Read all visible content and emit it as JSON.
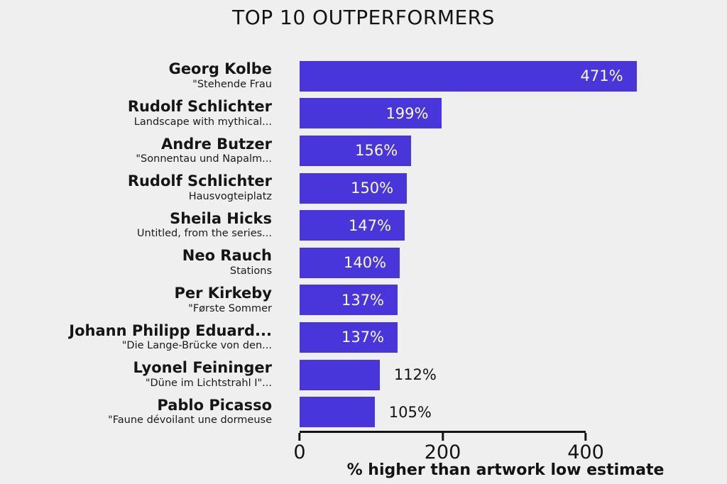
{
  "colors": {
    "background": "#efefef",
    "bar": "#4936db",
    "text": "#131313",
    "value_label_inside": "#faf9fc"
  },
  "chart_data": {
    "type": "bar",
    "orientation": "horizontal",
    "title": "TOP 10 OUTPERFORMERS",
    "xlabel": "% higher than artwork low estimate",
    "xlim": [
      0,
      400
    ],
    "xticks": [
      {
        "value": 0,
        "label": "0"
      },
      {
        "value": 200,
        "label": "200"
      },
      {
        "value": 400,
        "label": "400"
      }
    ],
    "grid": false,
    "legend": false,
    "items": [
      {
        "artist": "Georg Kolbe",
        "work": "\"Stehende Frau",
        "value": 471,
        "label": "471%"
      },
      {
        "artist": "Rudolf Schlichter",
        "work": "Landscape with mythical...",
        "value": 199,
        "label": "199%"
      },
      {
        "artist": "Andre Butzer",
        "work": "\"Sonnentau und Napalm...",
        "value": 156,
        "label": "156%"
      },
      {
        "artist": "Rudolf Schlichter",
        "work": "Hausvogteiplatz",
        "value": 150,
        "label": "150%"
      },
      {
        "artist": "Sheila Hicks",
        "work": "Untitled, from the series...",
        "value": 147,
        "label": "147%"
      },
      {
        "artist": "Neo Rauch",
        "work": "Stations",
        "value": 140,
        "label": "140%"
      },
      {
        "artist": "Per Kirkeby",
        "work": "\"Første Sommer",
        "value": 137,
        "label": "137%"
      },
      {
        "artist": "Johann Philipp Eduard...",
        "work": "\"Die Lange-Brücke von den...",
        "value": 137,
        "label": "137%"
      },
      {
        "artist": "Lyonel Feininger",
        "work": "\"Düne im Lichtstrahl I\"...",
        "value": 112,
        "label": "112%"
      },
      {
        "artist": "Pablo Picasso",
        "work": "\"Faune dévoilant une dormeuse",
        "value": 105,
        "label": "105%"
      }
    ]
  }
}
